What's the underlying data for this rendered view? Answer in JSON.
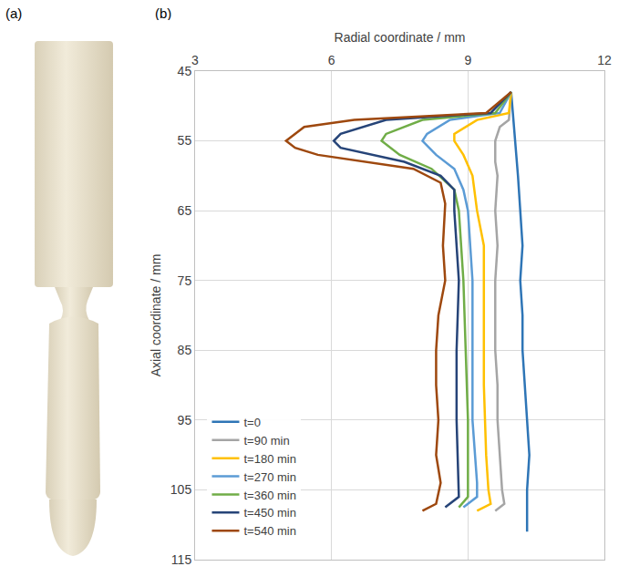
{
  "panel_labels": [
    "(a)",
    "(b)"
  ],
  "chart_data": {
    "type": "line",
    "x_label": "Radial coordinate / mm",
    "y_label": "Axial coordinate / mm",
    "xlim": [
      3,
      12
    ],
    "xticks": [
      3,
      6,
      9,
      12
    ],
    "ylim": [
      45,
      115
    ],
    "yticks": [
      45,
      55,
      65,
      75,
      85,
      95,
      105,
      115
    ],
    "grid": true,
    "legend": "lower left",
    "series": [
      {
        "name": "t=0",
        "color": "#2e75b6",
        "x": [
          9.95,
          10.0,
          10.05,
          10.1,
          10.15,
          10.2,
          10.15,
          10.2,
          10.2,
          10.25,
          10.3,
          10.35,
          10.3,
          10.3,
          10.3
        ],
        "y": [
          48,
          52,
          55,
          60,
          65,
          70,
          75,
          80,
          85,
          90,
          95,
          100,
          105,
          108,
          111
        ]
      },
      {
        "name": "t=90 min",
        "color": "#a5a5a5",
        "x": [
          9.95,
          9.9,
          9.7,
          9.6,
          9.6,
          9.65,
          9.6,
          9.65,
          9.6,
          9.6,
          9.6,
          9.65,
          9.65,
          9.7,
          9.75,
          9.8,
          9.6
        ],
        "y": [
          48,
          52,
          53,
          55,
          58,
          60,
          65,
          70,
          75,
          80,
          85,
          90,
          95,
          100,
          105,
          107,
          108
        ]
      },
      {
        "name": "t=180 min",
        "color": "#ffc000",
        "x": [
          9.95,
          9.9,
          9.2,
          8.7,
          8.7,
          8.9,
          9.1,
          9.2,
          9.35,
          9.35,
          9.35,
          9.4,
          9.45,
          9.5,
          9.2
        ],
        "y": [
          48,
          51,
          52,
          54,
          55,
          57,
          60,
          65,
          70,
          80,
          90,
          100,
          105,
          107,
          108
        ]
      },
      {
        "name": "t=270 min",
        "color": "#5b9bd5",
        "x": [
          9.95,
          9.7,
          8.6,
          8.1,
          8.0,
          8.3,
          8.7,
          8.9,
          9.0,
          9.1,
          9.1,
          9.1,
          9.2,
          9.2,
          8.9
        ],
        "y": [
          48,
          51,
          52,
          54,
          55,
          57,
          59,
          62,
          65,
          75,
          85,
          95,
          104,
          106,
          107.5
        ]
      },
      {
        "name": "t=360 min",
        "color": "#70ad47",
        "x": [
          9.95,
          9.6,
          8.0,
          7.2,
          7.1,
          7.5,
          8.2,
          8.7,
          8.8,
          8.9,
          8.95,
          9.0,
          9.0,
          9.0,
          8.8
        ],
        "y": [
          48,
          51,
          52,
          54,
          55,
          57,
          59,
          62,
          65,
          75,
          85,
          95,
          104,
          106,
          107.5
        ]
      },
      {
        "name": "t=450 min",
        "color": "#264478",
        "x": [
          9.95,
          9.5,
          7.2,
          6.2,
          6.05,
          6.2,
          7.6,
          8.4,
          8.7,
          8.7,
          8.8,
          8.75,
          8.75,
          8.8,
          8.8,
          8.5
        ],
        "y": [
          48,
          51,
          52,
          54,
          55,
          56,
          58,
          60,
          62,
          65,
          75,
          85,
          95,
          104,
          106,
          107.5
        ]
      },
      {
        "name": "t=540 min",
        "color": "#9e480e",
        "x": [
          9.95,
          9.4,
          6.5,
          5.4,
          5.0,
          5.2,
          5.7,
          6.7,
          7.8,
          8.4,
          8.5,
          8.45,
          8.5,
          8.35,
          8.3,
          8.3,
          8.35,
          8.3,
          8.4,
          8.3,
          8.0
        ],
        "y": [
          48,
          51,
          52,
          53,
          55,
          56,
          57,
          58,
          59,
          61,
          64,
          70,
          75,
          80,
          85,
          90,
          95,
          100,
          104,
          107,
          108
        ]
      }
    ]
  }
}
